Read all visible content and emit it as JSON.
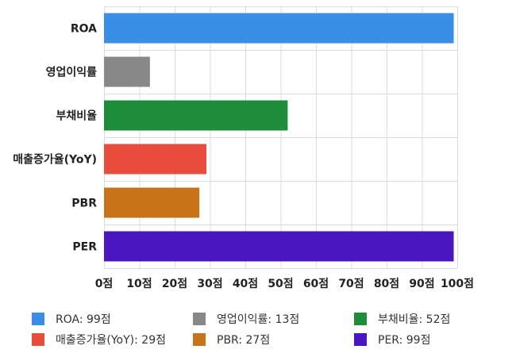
{
  "chart_data": {
    "type": "bar",
    "orientation": "horizontal",
    "categories": [
      "ROA",
      "영업이익률",
      "부채비율",
      "매출증가율(YoY)",
      "PBR",
      "PER"
    ],
    "values": [
      99,
      13,
      52,
      29,
      27,
      99
    ],
    "colors": [
      "#3a8ee6",
      "#888888",
      "#1e8c3a",
      "#e84c3d",
      "#c87319",
      "#4a16c0"
    ],
    "xlim": [
      0,
      100
    ],
    "xticks": [
      "0점",
      "10점",
      "20점",
      "30점",
      "40점",
      "50점",
      "60점",
      "70점",
      "80점",
      "90점",
      "100점"
    ],
    "grid": true,
    "legend_position": "bottom",
    "legend": [
      "ROA: 99점",
      "영업이익률: 13점",
      "부채비율: 52점",
      "매출증가율(YoY): 29점",
      "PBR: 27점",
      "PER: 99점"
    ]
  }
}
